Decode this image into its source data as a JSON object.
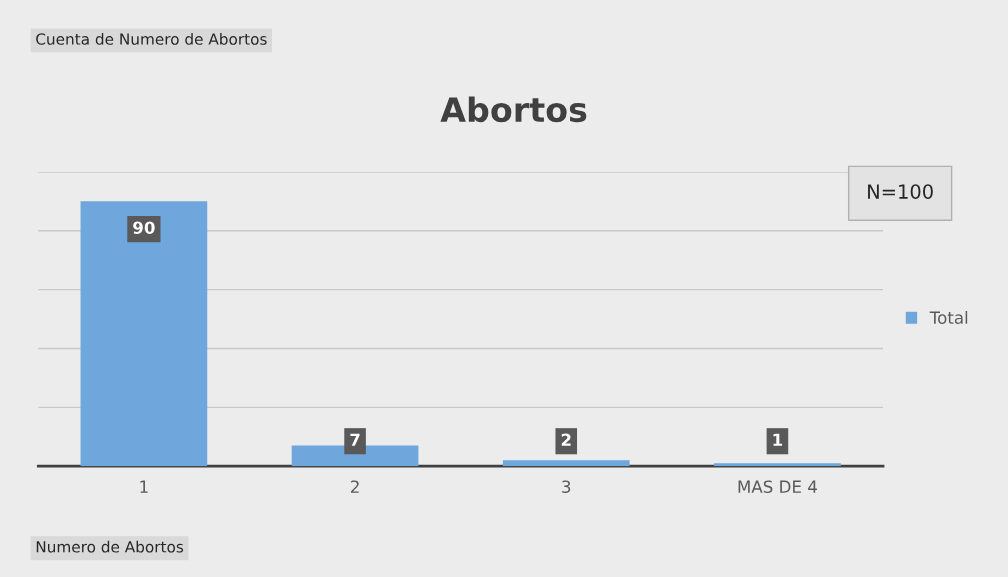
{
  "chart_data": {
    "type": "bar",
    "title": "Abortos",
    "categories": [
      "1",
      "2",
      "3",
      "MAS DE 4"
    ],
    "series": [
      {
        "name": "Total",
        "color": "#6fa6dc",
        "values": [
          90,
          7,
          2,
          1
        ]
      }
    ],
    "ylim": [
      0,
      100
    ],
    "yticks": [
      {
        "value": 0,
        "label": null
      },
      {
        "value": 20,
        "label": null
      },
      {
        "value": 40,
        "label": null
      },
      {
        "value": 60,
        "label": null
      },
      {
        "value": 80,
        "label": null
      },
      {
        "value": 100,
        "label": null
      }
    ],
    "grid": "y",
    "legend": "right",
    "data_labels": true,
    "tick_labels": "x",
    "annotations": [
      "Cuenta de Numero de Abortos",
      "N=100",
      "Numero de Abortos"
    ]
  }
}
